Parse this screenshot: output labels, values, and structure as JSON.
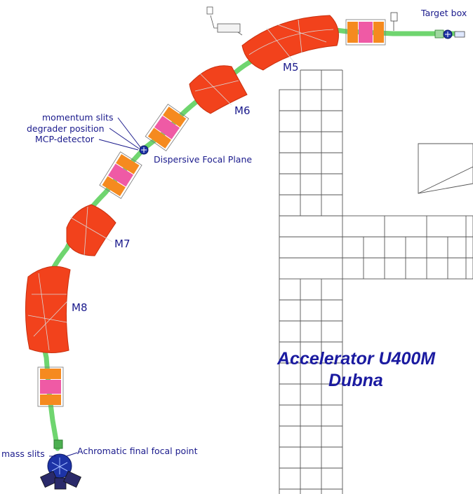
{
  "labels": {
    "target_box": "Target box",
    "m5": "M5",
    "m6": "M6",
    "m7": "M7",
    "m8": "M8",
    "momentum_slits": "momentum slits",
    "degrader_position": "degrader position",
    "mcp_detector": "MCP-detector",
    "dispersive_focal_plane": "Dispersive Focal Plane",
    "mass_slits": "mass slits",
    "achromatic_focal_point": "Achromatic final  focal point",
    "accelerator_line1": "Accelerator U400M",
    "accelerator_line2": "Dubna"
  },
  "colors": {
    "dipole": "#f2421c",
    "quad_orange": "#f58a1f",
    "quad_pink": "#ef5aa5",
    "beam_pipe": "#6fd56f",
    "detector": "#1d33a6",
    "label_text": "#1a1a8c"
  }
}
